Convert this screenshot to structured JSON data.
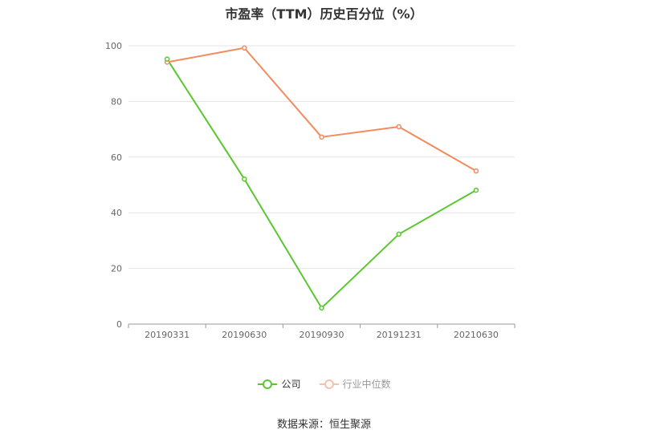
{
  "chart_data": {
    "type": "line",
    "title": "市盈率（TTM）历史百分位（%）",
    "categories": [
      "20190331",
      "20190630",
      "20190930",
      "20191231",
      "20210630"
    ],
    "series": [
      {
        "name": "公司",
        "color": "#5ac731",
        "values": [
          95.2,
          52.1,
          5.8,
          32.3,
          48.1
        ]
      },
      {
        "name": "行业中位数",
        "color": "#f08c5e",
        "values": [
          94.1,
          99.2,
          67.2,
          70.9,
          55.0
        ]
      }
    ],
    "ylim": [
      0,
      100
    ],
    "yticks": [
      0,
      20,
      40,
      60,
      80,
      100
    ],
    "grid": true,
    "legend_position": "bottom"
  },
  "footer": {
    "source": "数据来源：恒生聚源"
  }
}
